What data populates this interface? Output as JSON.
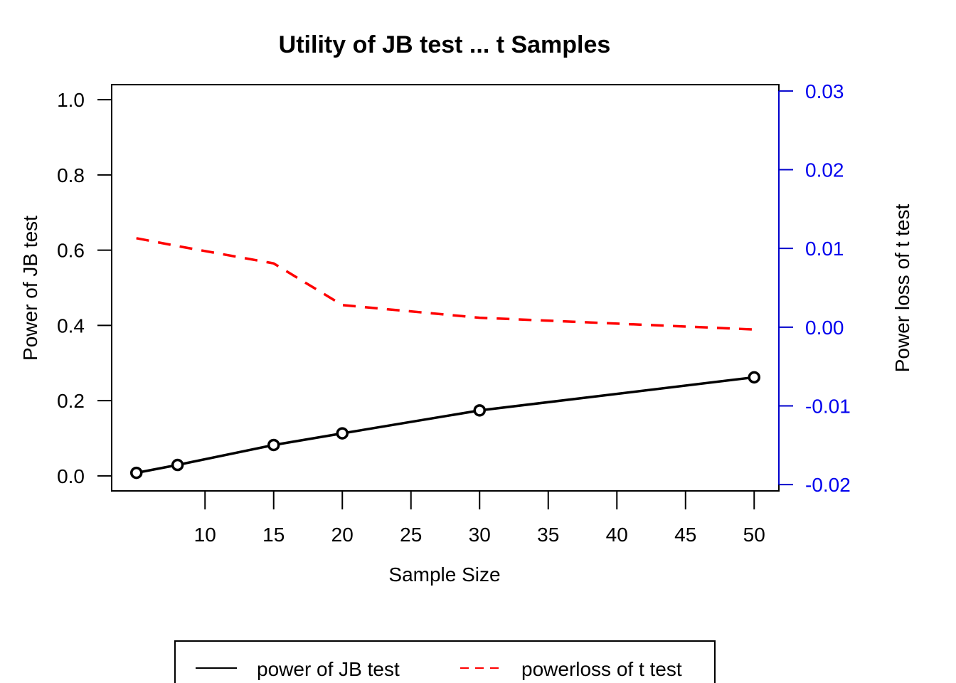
{
  "colors": {
    "jb": "#000000",
    "t": "#ff0000",
    "right_axis": "#0000cc",
    "right_axis_text": "#0000ee"
  },
  "chart_data": {
    "type": "line",
    "title": "Utility of JB test ... t Samples",
    "xlabel": "Sample Size",
    "ylabel": "Power of JB test",
    "y2label": "Power loss of t test",
    "x": [
      5,
      8,
      15,
      20,
      30,
      50
    ],
    "xlim": [
      3.2,
      51.8
    ],
    "ylim": [
      -0.04,
      1.04
    ],
    "y2lim": [
      -0.0208,
      0.0308
    ],
    "xticks": [
      10,
      15,
      20,
      25,
      30,
      35,
      40,
      45,
      50
    ],
    "yticks": [
      0.0,
      0.2,
      0.4,
      0.6,
      0.8,
      1.0
    ],
    "y2ticks": [
      -0.02,
      -0.01,
      0.0,
      0.01,
      0.02,
      0.03
    ],
    "xtick_labels": [
      "10",
      "15",
      "20",
      "25",
      "30",
      "35",
      "40",
      "45",
      "50"
    ],
    "ytick_labels": [
      "0.0",
      "0.2",
      "0.4",
      "0.6",
      "0.8",
      "1.0"
    ],
    "y2tick_labels": [
      "-0.02",
      "-0.01",
      "0.00",
      "0.01",
      "0.02",
      "0.03"
    ],
    "series": [
      {
        "name": "power of JB test",
        "axis": "left",
        "values": [
          0.008,
          0.029,
          0.082,
          0.113,
          0.174,
          0.262
        ],
        "style": "solid",
        "markers": "circle"
      },
      {
        "name": "powerloss of t test",
        "axis": "right",
        "values": [
          0.0113,
          0.0103,
          0.0081,
          0.0028,
          0.0012,
          -0.0003
        ],
        "style": "dashed",
        "markers": "none"
      }
    ],
    "legend": {
      "placement": "bottom",
      "entries": [
        "power of JB test",
        "powerloss of t test"
      ]
    },
    "grid": false
  }
}
